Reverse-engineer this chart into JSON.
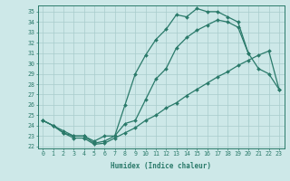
{
  "xlabel": "Humidex (Indice chaleur)",
  "bg_color": "#cde8e8",
  "line_color": "#2a7a6a",
  "grid_color": "#a8cccc",
  "xlim": [
    -0.5,
    23.5
  ],
  "ylim": [
    21.8,
    35.6
  ],
  "xticks": [
    0,
    1,
    2,
    3,
    4,
    5,
    6,
    7,
    8,
    9,
    10,
    11,
    12,
    13,
    14,
    15,
    16,
    17,
    18,
    19,
    20,
    21,
    22,
    23
  ],
  "yticks": [
    22,
    23,
    24,
    25,
    26,
    27,
    28,
    29,
    30,
    31,
    32,
    33,
    34,
    35
  ],
  "line1_x": [
    0,
    1,
    2,
    3,
    4,
    5,
    6,
    7,
    8,
    9,
    10,
    11,
    12,
    13,
    14,
    15,
    16,
    17,
    18,
    19,
    20
  ],
  "line1_y": [
    24.5,
    24.0,
    23.5,
    23.0,
    23.0,
    22.5,
    23.0,
    23.0,
    26.0,
    29.0,
    30.8,
    32.3,
    33.3,
    34.7,
    34.5,
    35.3,
    35.0,
    35.0,
    34.5,
    34.0,
    31.0
  ],
  "line2_x": [
    0,
    1,
    2,
    3,
    4,
    5,
    6,
    7,
    8,
    9,
    10,
    11,
    12,
    13,
    14,
    15,
    16,
    17,
    18,
    19,
    20,
    21,
    22,
    23
  ],
  "line2_y": [
    24.5,
    24.0,
    23.3,
    23.0,
    23.0,
    22.3,
    22.5,
    23.0,
    24.2,
    24.5,
    26.5,
    28.5,
    29.5,
    31.5,
    32.5,
    33.2,
    33.7,
    34.2,
    34.0,
    33.5,
    31.0,
    29.5,
    29.0,
    27.5
  ],
  "line3_x": [
    0,
    1,
    2,
    3,
    4,
    5,
    6,
    7,
    8,
    9,
    10,
    11,
    12,
    13,
    14,
    15,
    16,
    17,
    18,
    19,
    20,
    21,
    22,
    23
  ],
  "line3_y": [
    24.5,
    24.0,
    23.3,
    22.8,
    22.8,
    22.2,
    22.3,
    22.8,
    23.3,
    23.8,
    24.5,
    25.0,
    25.7,
    26.2,
    26.9,
    27.5,
    28.1,
    28.7,
    29.2,
    29.8,
    30.3,
    30.8,
    31.2,
    27.5
  ]
}
